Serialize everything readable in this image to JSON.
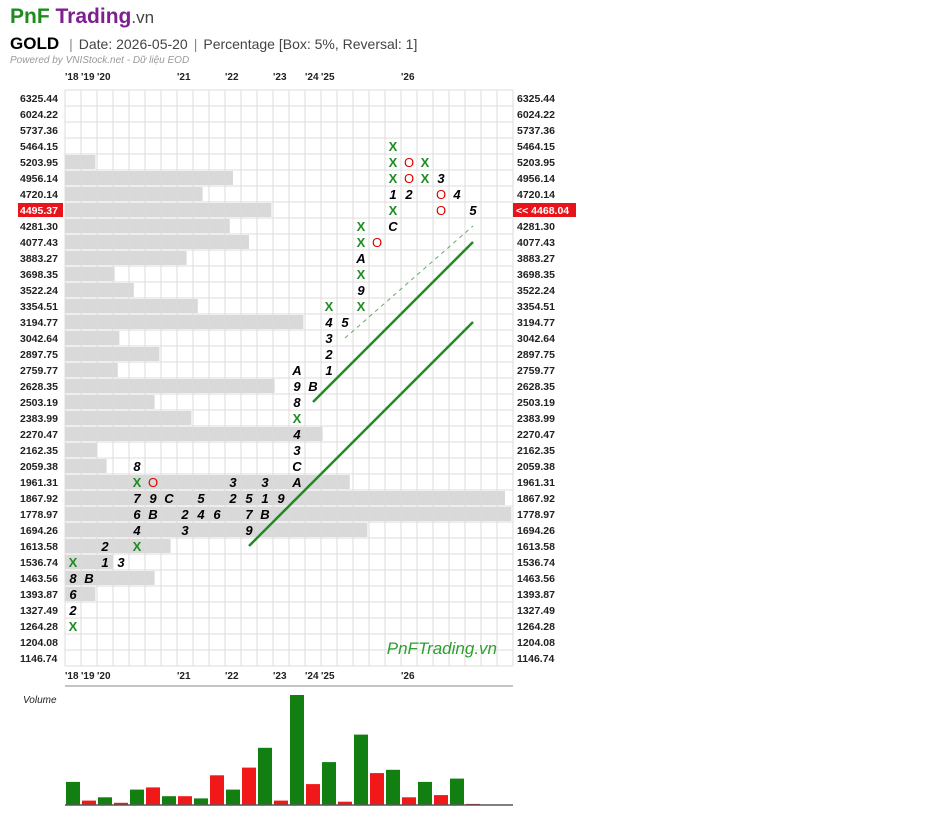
{
  "header": {
    "brand_pnf": "PnF",
    "brand_trading": "Trading",
    "brand_tld": ".vn",
    "symbol": "GOLD",
    "date": "Date: 2026-05-20",
    "method": "Percentage [Box: 5%, Reversal: 1]",
    "powered_by": "Powered by VNIStock.net - Dữ liệu EOD"
  },
  "chart_data": {
    "type": "point-and-figure",
    "box_percent": 5,
    "reversal": 1,
    "price_levels": [
      "6325.44",
      "6024.22",
      "5737.36",
      "5464.15",
      "5203.95",
      "4956.14",
      "4720.14",
      "4495.37",
      "4281.30",
      "4077.43",
      "3883.27",
      "3698.35",
      "3522.24",
      "3354.51",
      "3194.77",
      "3042.64",
      "2897.75",
      "2759.77",
      "2628.35",
      "2503.19",
      "2383.99",
      "2270.47",
      "2162.35",
      "2059.38",
      "1961.31",
      "1867.92",
      "1778.97",
      "1694.26",
      "1613.58",
      "1536.74",
      "1463.56",
      "1393.87",
      "1327.49",
      "1264.28",
      "1204.08",
      "1146.74"
    ],
    "last_price_left": "4495.37",
    "last_price_right": "<< 4468.04",
    "year_labels": [
      {
        "col": 0,
        "text": "'18"
      },
      {
        "col": 1,
        "text": "'19"
      },
      {
        "col": 2,
        "text": "'20"
      },
      {
        "col": 7,
        "text": "'21"
      },
      {
        "col": 10,
        "text": "'22"
      },
      {
        "col": 13,
        "text": "'23"
      },
      {
        "col": 15,
        "text": "'24"
      },
      {
        "col": 16,
        "text": "'25"
      },
      {
        "col": 21,
        "text": "'26"
      }
    ],
    "columns_count": 28,
    "cells": [
      {
        "c": 0,
        "r": 33,
        "t": "X"
      },
      {
        "c": 0,
        "r": 32,
        "t": "2"
      },
      {
        "c": 0,
        "r": 31,
        "t": "6"
      },
      {
        "c": 0,
        "r": 30,
        "t": "8"
      },
      {
        "c": 0,
        "r": 29,
        "t": "X"
      },
      {
        "c": 1,
        "r": 30,
        "t": "B"
      },
      {
        "c": 2,
        "r": 29,
        "t": "1"
      },
      {
        "c": 2,
        "r": 28,
        "t": "2"
      },
      {
        "c": 3,
        "r": 29,
        "t": "3"
      },
      {
        "c": 4,
        "r": 28,
        "t": "X"
      },
      {
        "c": 4,
        "r": 27,
        "t": "4"
      },
      {
        "c": 4,
        "r": 26,
        "t": "6"
      },
      {
        "c": 4,
        "r": 25,
        "t": "7"
      },
      {
        "c": 4,
        "r": 24,
        "t": "X"
      },
      {
        "c": 4,
        "r": 23,
        "t": "8"
      },
      {
        "c": 5,
        "r": 24,
        "t": "O"
      },
      {
        "c": 5,
        "r": 25,
        "t": "9"
      },
      {
        "c": 5,
        "r": 26,
        "t": "B"
      },
      {
        "c": 6,
        "r": 25,
        "t": "C"
      },
      {
        "c": 7,
        "r": 27,
        "t": "3"
      },
      {
        "c": 7,
        "r": 26,
        "t": "2"
      },
      {
        "c": 8,
        "r": 26,
        "t": "4"
      },
      {
        "c": 8,
        "r": 25,
        "t": "5"
      },
      {
        "c": 9,
        "r": 26,
        "t": "6"
      },
      {
        "c": 10,
        "r": 25,
        "t": "2"
      },
      {
        "c": 10,
        "r": 24,
        "t": "3"
      },
      {
        "c": 11,
        "r": 27,
        "t": "9"
      },
      {
        "c": 11,
        "r": 26,
        "t": "7"
      },
      {
        "c": 11,
        "r": 25,
        "t": "5"
      },
      {
        "c": 12,
        "r": 26,
        "t": "B"
      },
      {
        "c": 12,
        "r": 25,
        "t": "1"
      },
      {
        "c": 12,
        "r": 24,
        "t": "3"
      },
      {
        "c": 13,
        "r": 25,
        "t": "9"
      },
      {
        "c": 14,
        "r": 24,
        "t": "A"
      },
      {
        "c": 14,
        "r": 23,
        "t": "C"
      },
      {
        "c": 14,
        "r": 22,
        "t": "3"
      },
      {
        "c": 14,
        "r": 21,
        "t": "4"
      },
      {
        "c": 14,
        "r": 20,
        "t": "X"
      },
      {
        "c": 14,
        "r": 19,
        "t": "8"
      },
      {
        "c": 14,
        "r": 18,
        "t": "9"
      },
      {
        "c": 14,
        "r": 17,
        "t": "A"
      },
      {
        "c": 15,
        "r": 18,
        "t": "B"
      },
      {
        "c": 16,
        "r": 17,
        "t": "1"
      },
      {
        "c": 16,
        "r": 16,
        "t": "2"
      },
      {
        "c": 16,
        "r": 15,
        "t": "3"
      },
      {
        "c": 16,
        "r": 14,
        "t": "4"
      },
      {
        "c": 16,
        "r": 13,
        "t": "X"
      },
      {
        "c": 17,
        "r": 14,
        "t": "5"
      },
      {
        "c": 18,
        "r": 13,
        "t": "X"
      },
      {
        "c": 18,
        "r": 12,
        "t": "9"
      },
      {
        "c": 18,
        "r": 11,
        "t": "X"
      },
      {
        "c": 18,
        "r": 10,
        "t": "A"
      },
      {
        "c": 18,
        "r": 9,
        "t": "X"
      },
      {
        "c": 18,
        "r": 8,
        "t": "X"
      },
      {
        "c": 19,
        "r": 9,
        "t": "O"
      },
      {
        "c": 20,
        "r": 8,
        "t": "C"
      },
      {
        "c": 20,
        "r": 7,
        "t": "X"
      },
      {
        "c": 20,
        "r": 6,
        "t": "1"
      },
      {
        "c": 20,
        "r": 5,
        "t": "X"
      },
      {
        "c": 20,
        "r": 4,
        "t": "X"
      },
      {
        "c": 20,
        "r": 3,
        "t": "X"
      },
      {
        "c": 21,
        "r": 4,
        "t": "O"
      },
      {
        "c": 21,
        "r": 5,
        "t": "O"
      },
      {
        "c": 21,
        "r": 6,
        "t": "2"
      },
      {
        "c": 22,
        "r": 4,
        "t": "X"
      },
      {
        "c": 22,
        "r": 5,
        "t": "X"
      },
      {
        "c": 23,
        "r": 5,
        "t": "3"
      },
      {
        "c": 23,
        "r": 6,
        "t": "O"
      },
      {
        "c": 23,
        "r": 7,
        "t": "O"
      },
      {
        "c": 24,
        "r": 6,
        "t": "4"
      },
      {
        "c": 25,
        "r": 7,
        "t": "5"
      }
    ],
    "volume_by_price": [
      {
        "r": 4,
        "cols": 1.9
      },
      {
        "r": 5,
        "cols": 10.5
      },
      {
        "r": 6,
        "cols": 8.6
      },
      {
        "r": 7,
        "cols": 12.9
      },
      {
        "r": 8,
        "cols": 10.3
      },
      {
        "r": 9,
        "cols": 11.5
      },
      {
        "r": 10,
        "cols": 7.6
      },
      {
        "r": 11,
        "cols": 3.1
      },
      {
        "r": 12,
        "cols": 4.3
      },
      {
        "r": 13,
        "cols": 8.3
      },
      {
        "r": 14,
        "cols": 14.9
      },
      {
        "r": 15,
        "cols": 3.4
      },
      {
        "r": 16,
        "cols": 5.9
      },
      {
        "r": 17,
        "cols": 3.3
      },
      {
        "r": 18,
        "cols": 13.1
      },
      {
        "r": 19,
        "cols": 5.6
      },
      {
        "r": 20,
        "cols": 7.9
      },
      {
        "r": 21,
        "cols": 16.1
      },
      {
        "r": 22,
        "cols": 2.0
      },
      {
        "r": 23,
        "cols": 2.6
      },
      {
        "r": 24,
        "cols": 17.8
      },
      {
        "r": 25,
        "cols": 27.5
      },
      {
        "r": 26,
        "cols": 27.9
      },
      {
        "r": 27,
        "cols": 18.9
      },
      {
        "r": 28,
        "cols": 6.6
      },
      {
        "r": 29,
        "cols": 3.0
      },
      {
        "r": 30,
        "cols": 5.6
      },
      {
        "r": 31,
        "cols": 1.9
      }
    ],
    "trendlines": [
      {
        "style": "solid",
        "from": {
          "c": 11,
          "r": 28
        },
        "to": {
          "c": 25,
          "r": 14
        }
      },
      {
        "style": "solid",
        "from": {
          "c": 15,
          "r": 19
        },
        "to": {
          "c": 25,
          "r": 9
        }
      },
      {
        "style": "dashed",
        "from": {
          "c": 17,
          "r": 15
        },
        "to": {
          "c": 25,
          "r": 8
        }
      }
    ],
    "volume_label": "Volume",
    "volume_bars": [
      {
        "v": 0.21,
        "color": "green"
      },
      {
        "v": 0.04,
        "color": "red"
      },
      {
        "v": 0.07,
        "color": "green"
      },
      {
        "v": 0.02,
        "color": "red"
      },
      {
        "v": 0.14,
        "color": "green"
      },
      {
        "v": 0.16,
        "color": "red"
      },
      {
        "v": 0.08,
        "color": "green"
      },
      {
        "v": 0.08,
        "color": "red"
      },
      {
        "v": 0.06,
        "color": "green"
      },
      {
        "v": 0.27,
        "color": "red"
      },
      {
        "v": 0.14,
        "color": "green"
      },
      {
        "v": 0.34,
        "color": "red"
      },
      {
        "v": 0.52,
        "color": "green"
      },
      {
        "v": 0.04,
        "color": "red"
      },
      {
        "v": 1.0,
        "color": "green"
      },
      {
        "v": 0.19,
        "color": "red"
      },
      {
        "v": 0.39,
        "color": "green"
      },
      {
        "v": 0.03,
        "color": "red"
      },
      {
        "v": 0.64,
        "color": "green"
      },
      {
        "v": 0.29,
        "color": "red"
      },
      {
        "v": 0.32,
        "color": "green"
      },
      {
        "v": 0.07,
        "color": "red"
      },
      {
        "v": 0.21,
        "color": "green"
      },
      {
        "v": 0.09,
        "color": "red"
      },
      {
        "v": 0.24,
        "color": "green"
      },
      {
        "v": 0.01,
        "color": "red"
      }
    ],
    "watermark": "PnFTrading.vn",
    "colors": {
      "x": "#1e8c1e",
      "o": "#e00000",
      "month": "#000000",
      "grid": "#dcdcdc",
      "vol_profile": "#d9d9d9",
      "trend": "#1e8c1e",
      "last_bg": "#e8141b",
      "vol_green": "#118011",
      "vol_red": "#f01818"
    }
  }
}
